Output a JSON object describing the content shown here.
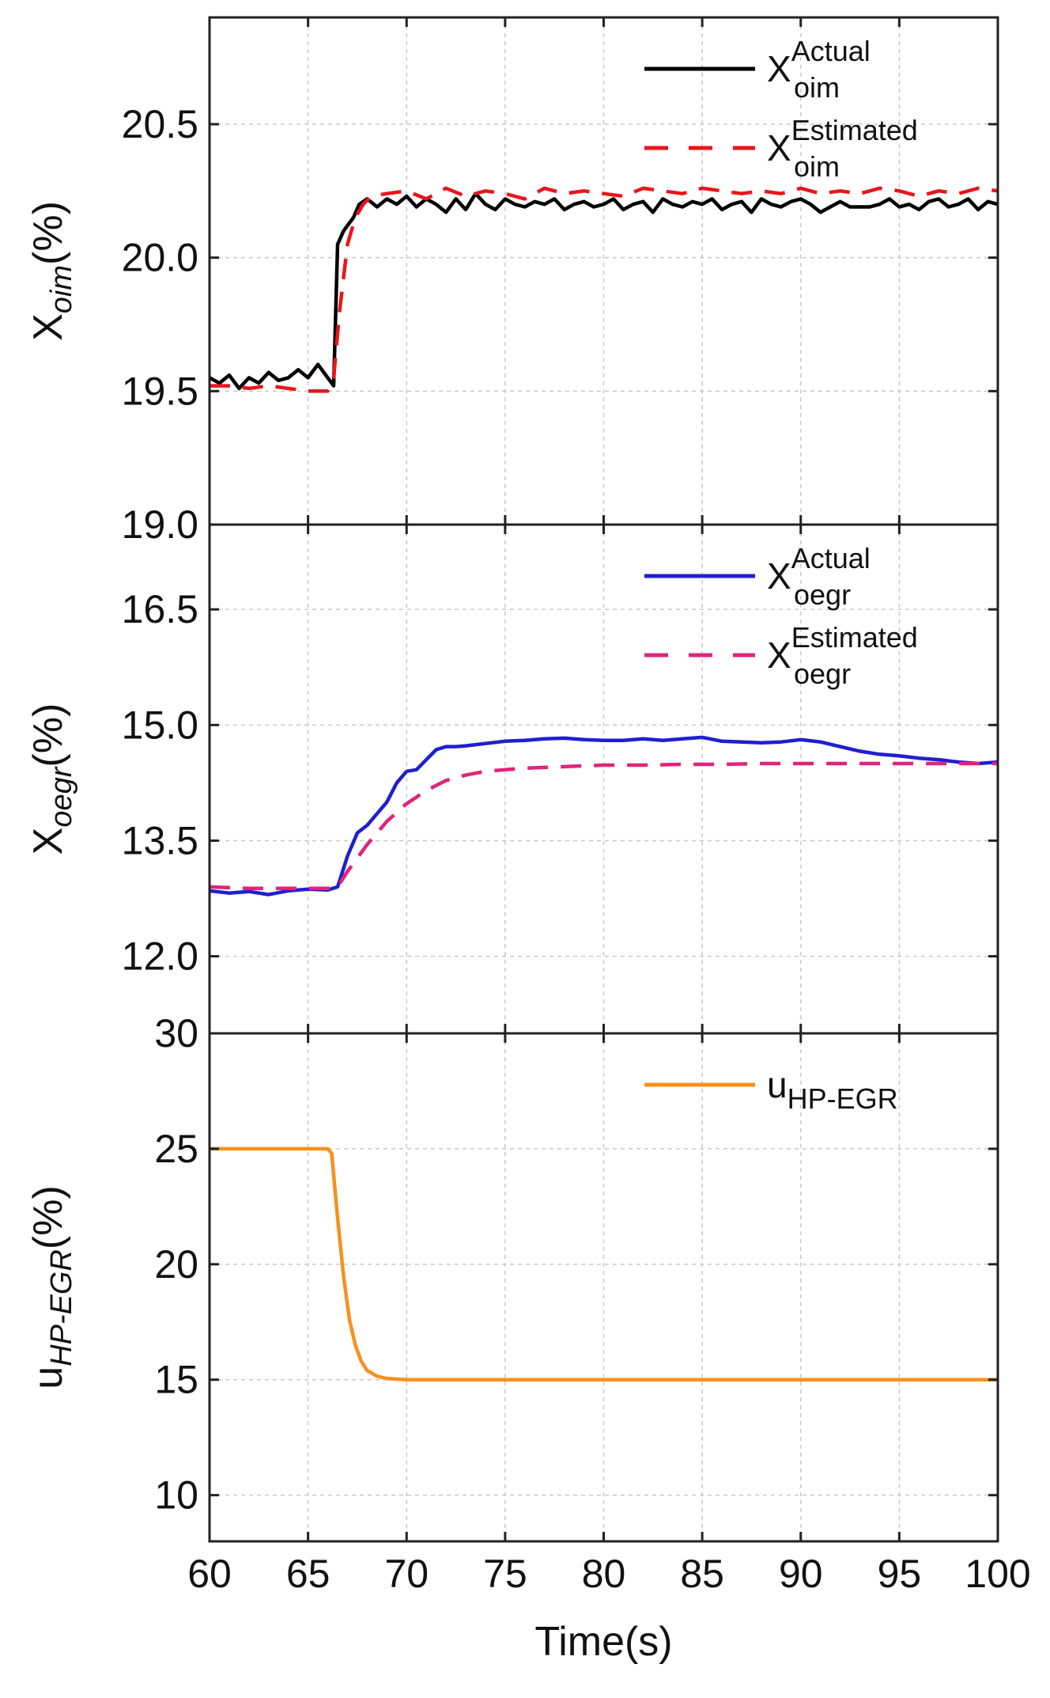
{
  "chart_data": {
    "type": "line",
    "shared_x": {
      "label": "Time(s)",
      "range": [
        60,
        100
      ],
      "ticks": [
        60,
        65,
        70,
        75,
        80,
        85,
        90,
        95,
        100
      ],
      "tick_labels": [
        "60",
        "65",
        "70",
        "75",
        "80",
        "85",
        "90",
        "95",
        "100"
      ]
    },
    "panels": [
      {
        "id": "oim",
        "ylabel": {
          "main": "X",
          "sub": "oim",
          "suffix": "(%)"
        },
        "ylim": [
          19.0,
          20.9
        ],
        "yticks": [
          19.0,
          19.5,
          20.0,
          20.5
        ],
        "ytick_labels": [
          "19.0",
          "19.5",
          "20.0",
          "20.5"
        ],
        "grid": true,
        "legend_position": "top-right",
        "series": [
          {
            "name": "X_oim Actual",
            "legend": {
              "main": "X",
              "sup": "Actual",
              "sub": "oim"
            },
            "color": "#000000",
            "dash": "solid",
            "x": [
              60,
              60.5,
              61,
              61.5,
              62,
              62.5,
              63,
              63.5,
              64,
              64.5,
              65,
              65.5,
              66,
              66.3,
              66.5,
              66.8,
              67,
              67.3,
              67.6,
              68,
              68.5,
              69,
              69.5,
              70,
              70.5,
              71,
              71.5,
              72,
              72.5,
              73,
              73.5,
              74,
              74.5,
              75,
              75.5,
              76,
              76.5,
              77,
              77.5,
              78,
              78.5,
              79,
              79.5,
              80,
              80.5,
              81,
              81.5,
              82,
              82.5,
              83,
              83.5,
              84,
              84.5,
              85,
              85.5,
              86,
              86.5,
              87,
              87.5,
              88,
              88.5,
              89,
              89.5,
              90,
              90.5,
              91,
              91.5,
              92,
              92.5,
              93,
              93.5,
              94,
              94.5,
              95,
              95.5,
              96,
              96.5,
              97,
              97.5,
              98,
              98.5,
              99,
              99.5,
              100
            ],
            "y": [
              19.55,
              19.53,
              19.56,
              19.51,
              19.55,
              19.53,
              19.57,
              19.54,
              19.55,
              19.58,
              19.55,
              19.6,
              19.55,
              19.52,
              20.05,
              20.1,
              20.12,
              20.15,
              20.2,
              20.22,
              20.19,
              20.22,
              20.2,
              20.23,
              20.19,
              20.22,
              20.2,
              20.17,
              20.22,
              20.18,
              20.24,
              20.2,
              20.18,
              20.22,
              20.2,
              20.19,
              20.21,
              20.2,
              20.22,
              20.18,
              20.2,
              20.21,
              20.19,
              20.2,
              20.22,
              20.18,
              20.2,
              20.21,
              20.17,
              20.22,
              20.2,
              20.19,
              20.21,
              20.2,
              20.22,
              20.18,
              20.2,
              20.21,
              20.17,
              20.22,
              20.2,
              20.19,
              20.21,
              20.22,
              20.2,
              20.17,
              20.19,
              20.21,
              20.19,
              20.19,
              20.19,
              20.2,
              20.22,
              20.19,
              20.2,
              20.18,
              20.21,
              20.22,
              20.19,
              20.2,
              20.22,
              20.18,
              20.21,
              20.2
            ]
          },
          {
            "name": "X_oim Estimated",
            "legend": {
              "main": "X",
              "sup": "Estimated",
              "sub": "oim"
            },
            "color": "#e8161b",
            "dash": "dashed",
            "x": [
              60,
              61,
              62,
              63,
              64,
              65,
              66,
              66.3,
              66.6,
              67,
              67.4,
              67.8,
              68.2,
              69,
              70,
              71,
              72,
              73,
              74,
              75,
              76,
              77,
              78,
              79,
              80,
              81,
              82,
              83,
              84,
              85,
              86,
              87,
              88,
              89,
              90,
              91,
              92,
              93,
              94,
              95,
              96,
              97,
              98,
              99,
              100
            ],
            "y": [
              19.52,
              19.52,
              19.51,
              19.52,
              19.51,
              19.5,
              19.5,
              19.55,
              19.8,
              20.05,
              20.15,
              20.2,
              20.23,
              20.24,
              20.25,
              20.22,
              20.26,
              20.23,
              20.25,
              20.24,
              20.22,
              20.26,
              20.24,
              20.25,
              20.24,
              20.23,
              20.26,
              20.25,
              20.24,
              20.26,
              20.25,
              20.24,
              20.25,
              20.24,
              20.26,
              20.24,
              20.25,
              20.24,
              20.26,
              20.25,
              20.23,
              20.25,
              20.24,
              20.26,
              20.25
            ]
          }
        ]
      },
      {
        "id": "oegr",
        "ylabel": {
          "main": "X",
          "sub": "oegr",
          "suffix": "(%)"
        },
        "ylim": [
          11.0,
          17.6
        ],
        "yticks": [
          12.0,
          13.5,
          15.0,
          16.5
        ],
        "ytick_labels": [
          "12.0",
          "13.5",
          "15.0",
          "16.5"
        ],
        "grid": true,
        "legend_position": "top-right",
        "series": [
          {
            "name": "X_oegr Actual",
            "legend": {
              "main": "X",
              "sup": "Actual",
              "sub": "oegr"
            },
            "color": "#1f1fd0",
            "dash": "solid",
            "x": [
              60,
              61,
              62,
              63,
              64,
              65,
              66,
              66.5,
              67,
              67.5,
              68,
              68.5,
              69,
              69.5,
              70,
              70.5,
              71,
              71.5,
              72,
              72.5,
              73,
              74,
              75,
              76,
              77,
              78,
              79,
              80,
              81,
              82,
              83,
              84,
              85,
              86,
              87,
              88,
              89,
              90,
              91,
              92,
              93,
              94,
              95,
              96,
              97,
              98,
              99,
              100
            ],
            "y": [
              12.85,
              12.82,
              12.84,
              12.8,
              12.85,
              12.87,
              12.86,
              12.9,
              13.3,
              13.6,
              13.7,
              13.85,
              14.0,
              14.25,
              14.4,
              14.42,
              14.55,
              14.68,
              14.72,
              14.72,
              14.73,
              14.76,
              14.79,
              14.8,
              14.82,
              14.83,
              14.81,
              14.8,
              14.8,
              14.82,
              14.8,
              14.82,
              14.84,
              14.79,
              14.78,
              14.77,
              14.78,
              14.81,
              14.78,
              14.72,
              14.66,
              14.62,
              14.6,
              14.57,
              14.55,
              14.52,
              14.5,
              14.52
            ]
          },
          {
            "name": "X_oegr Estimated",
            "legend": {
              "main": "X",
              "sup": "Estimated",
              "sub": "oegr"
            },
            "color": "#e0247a",
            "dash": "dashed",
            "x": [
              60,
              62,
              64,
              66,
              66.5,
              67,
              68,
              69,
              70,
              71,
              72,
              73,
              74,
              75,
              76,
              77,
              78,
              79,
              80,
              82,
              84,
              86,
              88,
              90,
              92,
              94,
              96,
              98,
              100
            ],
            "y": [
              12.9,
              12.88,
              12.88,
              12.88,
              12.9,
              13.1,
              13.45,
              13.75,
              13.98,
              14.15,
              14.28,
              14.35,
              14.4,
              14.42,
              14.44,
              14.45,
              14.46,
              14.47,
              14.48,
              14.48,
              14.49,
              14.49,
              14.5,
              14.5,
              14.5,
              14.5,
              14.5,
              14.5,
              14.5
            ]
          }
        ]
      },
      {
        "id": "u",
        "ylabel": {
          "main": "u",
          "sub": "HP-EGR",
          "suffix": "(%)"
        },
        "ylim": [
          8.0,
          30.0
        ],
        "yticks": [
          10,
          15,
          20,
          25,
          30
        ],
        "ytick_labels": [
          "10",
          "15",
          "20",
          "25",
          "30"
        ],
        "grid": true,
        "legend_position": "top-right",
        "series": [
          {
            "name": "u_HP-EGR",
            "legend": {
              "main": "u",
              "sup": "",
              "sub": "HP-EGR"
            },
            "color": "#f7901e",
            "dash": "solid",
            "x": [
              60,
              66,
              66.2,
              66.5,
              66.8,
              67.1,
              67.4,
              67.7,
              68,
              68.5,
              69,
              70,
              80,
              90,
              100
            ],
            "y": [
              25,
              25,
              24.8,
              22.0,
              19.5,
              17.6,
              16.5,
              15.8,
              15.4,
              15.15,
              15.05,
              15.0,
              15.0,
              15.0,
              15.0
            ]
          }
        ]
      }
    ]
  }
}
